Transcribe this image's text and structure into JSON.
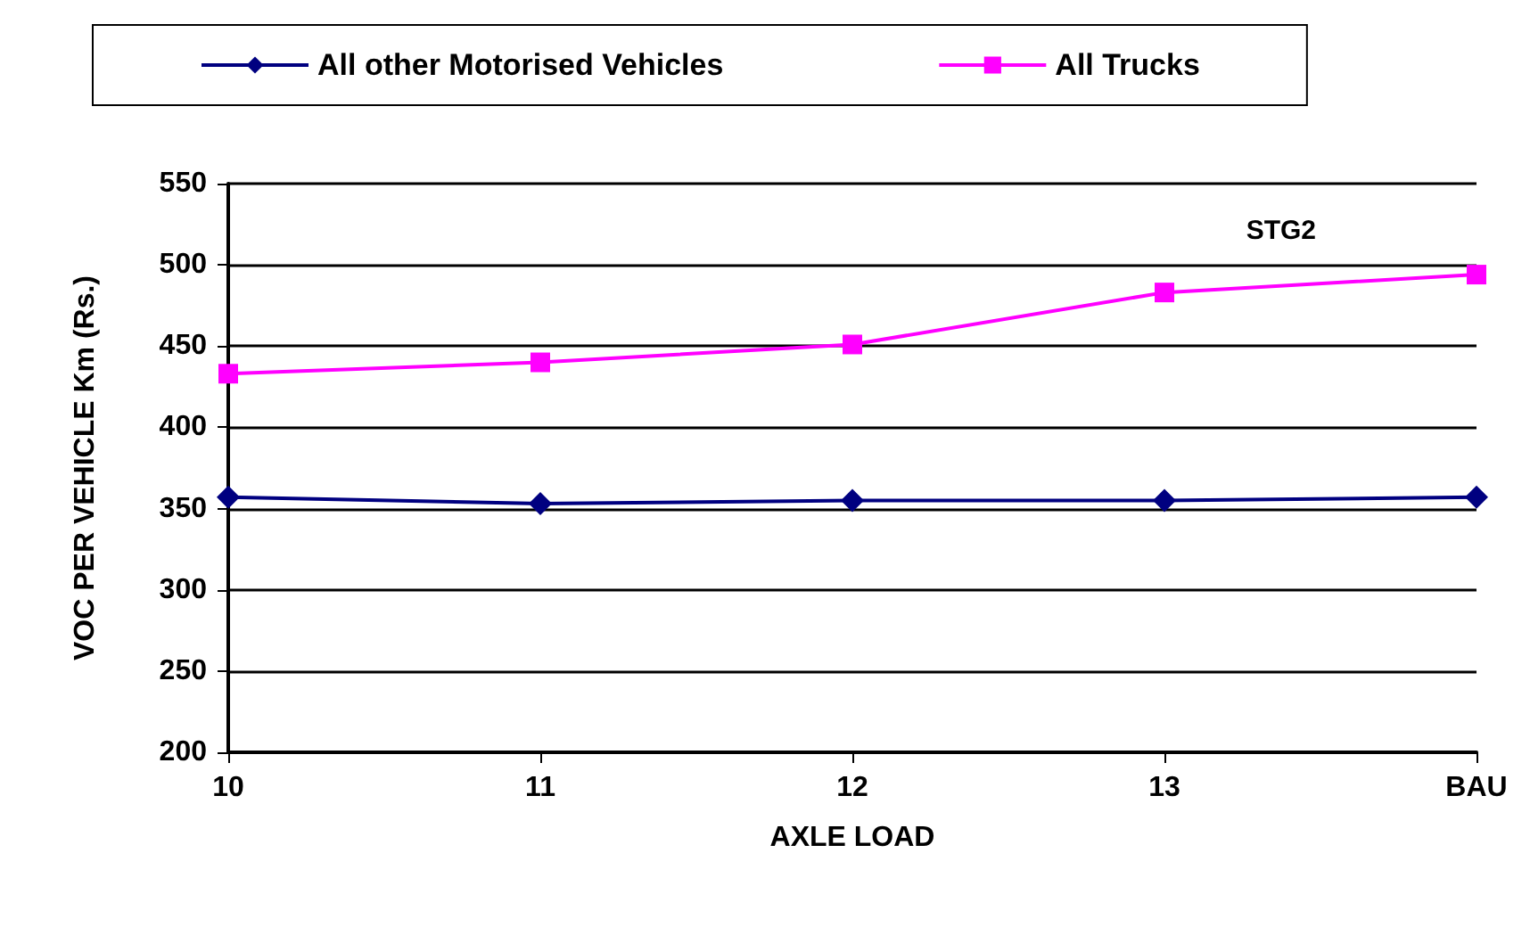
{
  "chart_data": {
    "type": "line",
    "xlabel": "AXLE LOAD",
    "ylabel": "VOC PER VEHICLE Km (Rs.)",
    "annotations": [
      "STG2"
    ],
    "categories": [
      "10",
      "11",
      "12",
      "13",
      "BAU"
    ],
    "series": [
      {
        "name": "All other Motorised Vehicles",
        "color": "#000080",
        "marker": "diamond",
        "values": [
          357,
          353,
          355,
          355,
          357
        ]
      },
      {
        "name": "All Trucks",
        "color": "#ff00ff",
        "marker": "square",
        "values": [
          433,
          440,
          451,
          483,
          494
        ]
      }
    ],
    "ylim": [
      200,
      550
    ],
    "yticks": [
      200,
      250,
      300,
      350,
      400,
      450,
      500,
      550
    ],
    "grid": "y",
    "legend": "top"
  }
}
